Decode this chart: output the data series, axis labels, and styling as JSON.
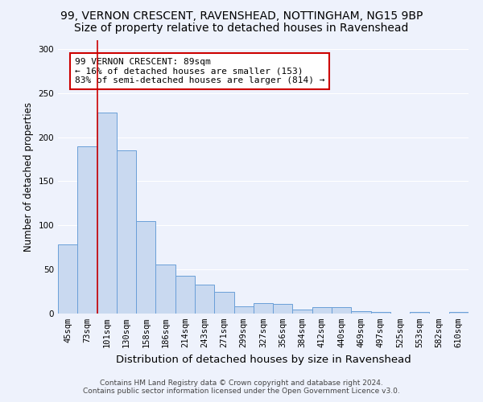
{
  "title_line1": "99, VERNON CRESCENT, RAVENSHEAD, NOTTINGHAM, NG15 9BP",
  "title_line2": "Size of property relative to detached houses in Ravenshead",
  "xlabel": "Distribution of detached houses by size in Ravenshead",
  "ylabel": "Number of detached properties",
  "categories": [
    "45sqm",
    "73sqm",
    "101sqm",
    "130sqm",
    "158sqm",
    "186sqm",
    "214sqm",
    "243sqm",
    "271sqm",
    "299sqm",
    "327sqm",
    "356sqm",
    "384sqm",
    "412sqm",
    "440sqm",
    "469sqm",
    "497sqm",
    "525sqm",
    "553sqm",
    "582sqm",
    "610sqm"
  ],
  "values": [
    78,
    190,
    228,
    185,
    105,
    56,
    43,
    33,
    25,
    8,
    12,
    11,
    5,
    7,
    7,
    3,
    2,
    0,
    2,
    0,
    2
  ],
  "bar_color": "#c9d9f0",
  "bar_edge_color": "#6a9fd8",
  "annotation_text": "99 VERNON CRESCENT: 89sqm\n← 16% of detached houses are smaller (153)\n83% of semi-detached houses are larger (814) →",
  "annotation_box_color": "white",
  "annotation_box_edge": "#cc0000",
  "red_line_color": "#cc0000",
  "ylim": [
    0,
    310
  ],
  "yticks": [
    0,
    50,
    100,
    150,
    200,
    250,
    300
  ],
  "footer_line1": "Contains HM Land Registry data © Crown copyright and database right 2024.",
  "footer_line2": "Contains public sector information licensed under the Open Government Licence v3.0.",
  "bg_color": "#eef2fc",
  "grid_color": "#ffffff",
  "title1_fontsize": 10,
  "title2_fontsize": 10,
  "tick_fontsize": 7.5,
  "ylabel_fontsize": 8.5,
  "xlabel_fontsize": 9.5
}
